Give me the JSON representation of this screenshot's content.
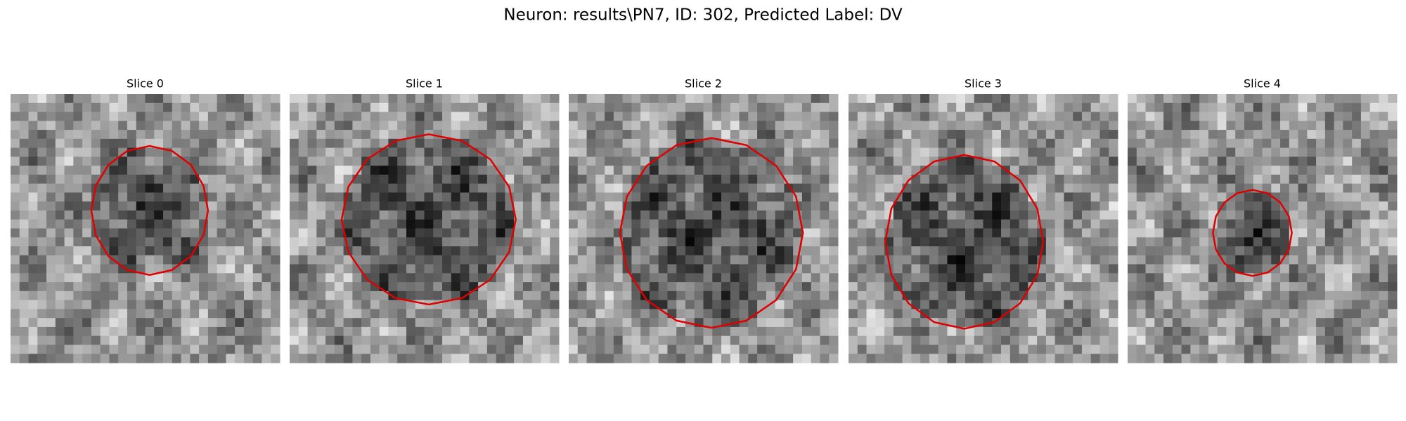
{
  "title": "Neuron: results\\PN7, ID: 302, Predicted Label: DV",
  "panels": [
    {
      "title": "Slice 0"
    },
    {
      "title": "Slice 1"
    },
    {
      "title": "Slice 2"
    },
    {
      "title": "Slice 3"
    },
    {
      "title": "Slice 4"
    }
  ]
}
